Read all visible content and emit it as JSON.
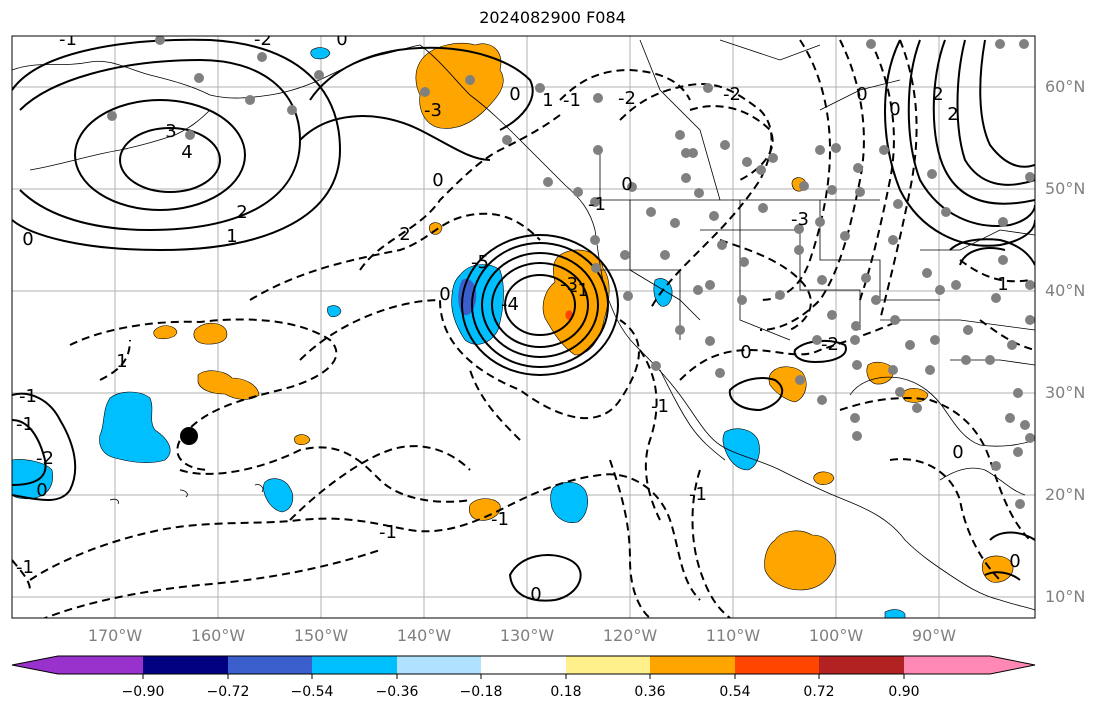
{
  "title": "2024082900 F084",
  "lat_labels": [
    "60°N",
    "50°N",
    "40°N",
    "30°N",
    "20°N",
    "10°N"
  ],
  "lon_labels": [
    "170°W",
    "160°W",
    "150°W",
    "140°W",
    "130°W",
    "120°W",
    "110°W",
    "100°W",
    "90°W"
  ],
  "colorbar": {
    "colors": [
      "#9932cc",
      "#000080",
      "#3a5fcd",
      "#00bfff",
      "#b0e2ff",
      "#ffffff",
      "#fff08c",
      "#ffa500",
      "#ff4500",
      "#b22222",
      "#ff89b4"
    ],
    "tick_labels": [
      "−0.90",
      "−0.72",
      "−0.54",
      "−0.36",
      "−0.18",
      "0.18",
      "0.36",
      "0.54",
      "0.72",
      "0.90"
    ]
  },
  "colors": {
    "positive_fill": "#ffa500",
    "negative_fill": "#00bfff",
    "contour": "#000000",
    "stations": "#808080",
    "grid": "#b0b0b0"
  },
  "contour_labels": [
    "1",
    "-1",
    "3",
    "4",
    "2",
    "1",
    "0",
    "0",
    "2",
    "1",
    "-1",
    "-2",
    "-2",
    "-3",
    "2",
    "2",
    "1",
    "0",
    "-1",
    "-1",
    "0",
    "-3",
    "-4",
    "-5",
    "-3",
    "0",
    "-2",
    "-1",
    "-1",
    "0",
    "0",
    "0",
    "-1",
    "-2",
    "-1",
    "-2",
    "0",
    "-1",
    "0",
    "0",
    "0",
    "-1",
    "-1",
    "0"
  ]
}
